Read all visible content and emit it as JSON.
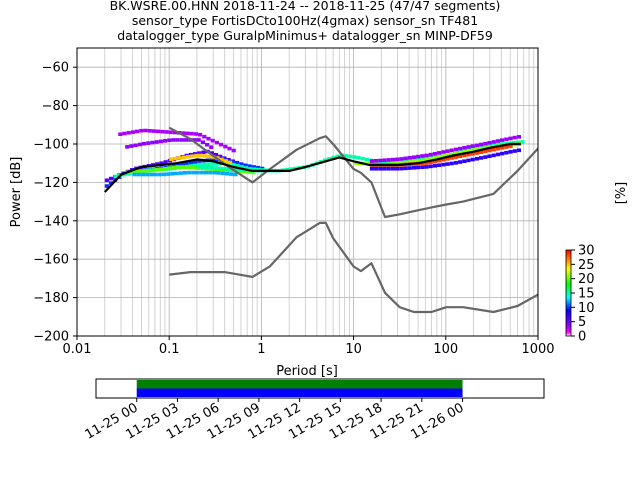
{
  "chart_data": {
    "type": "ppsd",
    "title": {
      "line1": "BK.WSRE.00.HNN   2018-11-24 -- 2018-11-25  (47/47 segments)",
      "line2": "sensor_type FortisDCto100Hz(4gmax) sensor_sn TF481",
      "line3": "datalogger_type GuralpMinimus+ datalogger_sn MINP-DF59"
    },
    "xlabel": "Period [s]",
    "ylabel": "Power [dB]",
    "xscale": "log",
    "xlim": [
      0.01,
      1000
    ],
    "ylim": [
      -200,
      -50
    ],
    "grid": true,
    "x_ticks": [
      {
        "value": 0.01,
        "label": "0.01"
      },
      {
        "value": 0.1,
        "label": "0.1"
      },
      {
        "value": 1,
        "label": "1"
      },
      {
        "value": 10,
        "label": "10"
      },
      {
        "value": 100,
        "label": "100"
      },
      {
        "value": 1000,
        "label": "1000"
      }
    ],
    "y_ticks": [
      -200,
      -180,
      -160,
      -140,
      -120,
      -100,
      -80,
      -60
    ],
    "colorbar": {
      "label": "[%]",
      "range": [
        0,
        30
      ],
      "ticks": [
        0,
        5,
        10,
        15,
        20,
        25,
        30
      ]
    },
    "series": [
      {
        "name": "",
        "role": "noise-model-high",
        "color": "#666666",
        "x": [
          0.1,
          0.17,
          0.4,
          0.8,
          1.24,
          2.4,
          4.3,
          5.0,
          6.0,
          10.0,
          12.0,
          15.6,
          21.9,
          31.6,
          45.0,
          70.0,
          101.0,
          154.0,
          328.0,
          600.0,
          10000.0
        ],
        "y": [
          -91.5,
          -97.4,
          -110.5,
          -120.0,
          -113.0,
          -103.0,
          -97.0,
          -96.0,
          -100.0,
          -113.0,
          -115.0,
          -120.0,
          -138.0,
          -136.6,
          -135.0,
          -133.0,
          -131.5,
          -130.0,
          -126.0,
          -114.0,
          -50.0
        ]
      },
      {
        "name": "",
        "role": "noise-model-low",
        "color": "#666666",
        "x": [
          0.1,
          0.17,
          0.4,
          0.8,
          1.24,
          2.4,
          4.3,
          5.0,
          6.0,
          10.0,
          12.0,
          15.6,
          21.9,
          31.6,
          45.0,
          70.0,
          101.0,
          154.0,
          328.0,
          600.0,
          10000.0
        ],
        "y": [
          -168.0,
          -166.7,
          -166.7,
          -169.2,
          -163.7,
          -148.6,
          -141.1,
          -141.1,
          -149.0,
          -163.8,
          -166.2,
          -162.1,
          -177.5,
          -185.0,
          -187.5,
          -187.5,
          -185.0,
          -185.0,
          -187.5,
          -184.4,
          -151.9
        ]
      },
      {
        "name": "",
        "role": "mean",
        "color": "#000000",
        "x": [
          0.02,
          0.03,
          0.05,
          0.08,
          0.12,
          0.2,
          0.3,
          0.5,
          0.8,
          1.2,
          2,
          3,
          5,
          7,
          10,
          15,
          20,
          30,
          50,
          80,
          120,
          200,
          300,
          500,
          650
        ],
        "y": [
          -125,
          -116,
          -112,
          -111,
          -110,
          -108,
          -109,
          -112,
          -114,
          -114,
          -114,
          -112,
          -109,
          -107,
          -109,
          -111,
          -111,
          -111,
          -110,
          -108,
          -106,
          -104,
          -102,
          -100,
          -100
        ]
      }
    ],
    "density": {
      "bands": [
        {
          "value": 0.1,
          "x": [
            0.028,
            0.05,
            0.1,
            0.2,
            0.3,
            0.5
          ],
          "y": [
            -95,
            -93,
            -94,
            -95,
            -99,
            -104
          ]
        },
        {
          "value": 0.13,
          "x": [
            0.03,
            0.05,
            0.1,
            0.2,
            0.3
          ],
          "y": [
            -102,
            -100,
            -98,
            -98,
            -103
          ]
        },
        {
          "value": 0.2,
          "x": [
            0.02,
            0.04,
            0.08,
            0.15,
            0.25,
            0.4,
            0.7
          ],
          "y": [
            -119,
            -113,
            -110,
            -106,
            -104,
            -108,
            -112
          ]
        },
        {
          "value": 0.33,
          "x": [
            0.02,
            0.03,
            0.05,
            0.1,
            0.2,
            0.35,
            0.6,
            1
          ],
          "y": [
            -122,
            -116,
            -114,
            -112,
            -109,
            -108,
            -111,
            -113
          ]
        },
        {
          "value": 0.5,
          "x": [
            0.025,
            0.05,
            0.1,
            0.2,
            0.4,
            0.7,
            1.2
          ],
          "y": [
            -117,
            -114,
            -113,
            -111,
            -110,
            -113,
            -114
          ]
        },
        {
          "value": 0.66,
          "x": [
            0.03,
            0.06,
            0.12,
            0.25,
            0.5,
            0.8
          ],
          "y": [
            -115,
            -114,
            -112,
            -113,
            -114,
            -115
          ]
        },
        {
          "value": 0.4,
          "x": [
            0.04,
            0.08,
            0.15,
            0.3,
            0.5
          ],
          "y": [
            -116,
            -116,
            -115,
            -115,
            -116
          ]
        },
        {
          "value": 0.83,
          "x": [
            0.1,
            0.2,
            0.3,
            0.45
          ],
          "y": [
            -108,
            -106,
            -107,
            -110
          ]
        },
        {
          "value": 0.5,
          "x": [
            0.2,
            0.4,
            0.8,
            1.5,
            3,
            5,
            7,
            10,
            20,
            50,
            100,
            200,
            400,
            650
          ],
          "y": [
            -112,
            -113,
            -114,
            -114,
            -112,
            -108,
            -106,
            -107,
            -110,
            -108,
            -106,
            -102,
            -100,
            -99
          ]
        },
        {
          "value": 0.7,
          "x": [
            10,
            20,
            50,
            100,
            200,
            400,
            650
          ],
          "y": [
            -110,
            -111,
            -109,
            -106,
            -103,
            -101,
            -100
          ]
        },
        {
          "value": 0.95,
          "x": [
            15,
            30,
            60,
            120,
            250,
            500
          ],
          "y": [
            -111,
            -111,
            -110,
            -107,
            -104,
            -101
          ]
        },
        {
          "value": 0.12,
          "x": [
            15,
            30,
            60,
            120,
            250,
            500,
            650
          ],
          "y": [
            -109,
            -108,
            -106,
            -103,
            -100,
            -97,
            -96
          ]
        },
        {
          "value": 0.25,
          "x": [
            15,
            30,
            60,
            120,
            250,
            500,
            650
          ],
          "y": [
            -113,
            -113,
            -112,
            -110,
            -107,
            -104,
            -103
          ]
        }
      ]
    },
    "time_axis": {
      "tick_labels": [
        "11-25 00",
        "11-25 03",
        "11-25 06",
        "11-25 09",
        "11-25 12",
        "11-25 15",
        "11-25 18",
        "11-25 21",
        "11-26 00"
      ],
      "range_hours": [
        -3,
        30
      ],
      "coverage": [
        {
          "start_hour": 0,
          "end_hour": 24,
          "color": "#008000"
        },
        {
          "start_hour": 0,
          "end_hour": 24,
          "color": "#0000ff"
        }
      ]
    }
  }
}
